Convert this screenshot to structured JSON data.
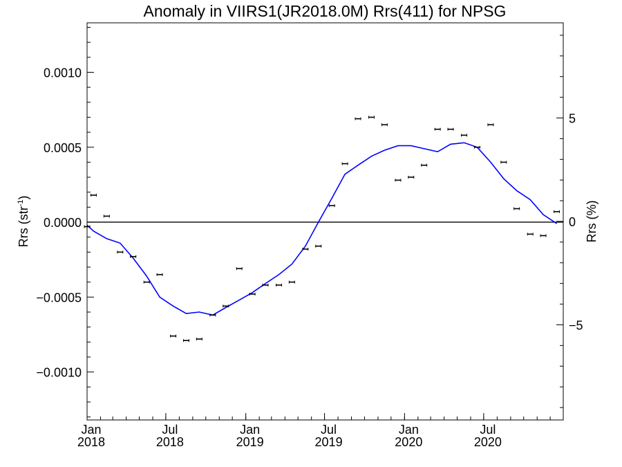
{
  "chart_data": {
    "type": "line",
    "title": "Anomaly in VIIRS1(JR2018.0M) Rrs(411) for NPSG",
    "ylabel_left": {
      "main": "Rrs (str",
      "sup": "-1",
      "end": ")"
    },
    "ylabel_right": "Rrs (%)",
    "xlim": [
      "2018-01-01",
      "2020-12-31"
    ],
    "ylim_left": [
      -0.00132,
      0.00133
    ],
    "ylim_right": [
      -9.6,
      9.6
    ],
    "xticks": [
      {
        "date": "2018-01-01",
        "month": "Jan",
        "year": "2018"
      },
      {
        "date": "2018-07-01",
        "month": "Jul",
        "year": "2018"
      },
      {
        "date": "2019-01-01",
        "month": "Jan",
        "year": "2019"
      },
      {
        "date": "2019-07-01",
        "month": "Jul",
        "year": "2019"
      },
      {
        "date": "2020-01-01",
        "month": "Jan",
        "year": "2020"
      },
      {
        "date": "2020-07-01",
        "month": "Jul",
        "year": "2020"
      }
    ],
    "yticks_left": [
      {
        "value": 0.001,
        "label": "0.0010"
      },
      {
        "value": 0.0005,
        "label": "0.0005"
      },
      {
        "value": 0.0,
        "label": "0.0000"
      },
      {
        "value": -0.0005,
        "label": "−0.0005"
      },
      {
        "value": -0.001,
        "label": "−0.0010"
      }
    ],
    "yticks_right": [
      {
        "value": 5,
        "label": "5"
      },
      {
        "value": 0,
        "label": "0"
      },
      {
        "value": -5,
        "label": "−5"
      }
    ],
    "zero_line": true,
    "colors": {
      "line": "#0000ff",
      "points": "#000000",
      "zero": "#000000"
    },
    "series": [
      {
        "type": "errorbar-points",
        "points": [
          {
            "x": "2018-01-01",
            "y": -3e-05
          },
          {
            "x": "2018-01-16",
            "y": 0.00018
          },
          {
            "x": "2018-02-15",
            "y": 4e-05
          },
          {
            "x": "2018-03-18",
            "y": -0.0002
          },
          {
            "x": "2018-04-17",
            "y": -0.00023
          },
          {
            "x": "2018-05-18",
            "y": -0.0004
          },
          {
            "x": "2018-06-17",
            "y": -0.00035
          },
          {
            "x": "2018-07-18",
            "y": -0.00076
          },
          {
            "x": "2018-08-17",
            "y": -0.00079
          },
          {
            "x": "2018-09-16",
            "y": -0.00078
          },
          {
            "x": "2018-10-17",
            "y": -0.00062
          },
          {
            "x": "2018-11-16",
            "y": -0.00056
          },
          {
            "x": "2018-12-17",
            "y": -0.00031
          },
          {
            "x": "2019-01-16",
            "y": -0.00048
          },
          {
            "x": "2019-02-15",
            "y": -0.00042
          },
          {
            "x": "2019-03-18",
            "y": -0.00042
          },
          {
            "x": "2019-04-17",
            "y": -0.0004
          },
          {
            "x": "2019-05-18",
            "y": -0.00018
          },
          {
            "x": "2019-06-17",
            "y": -0.00016
          },
          {
            "x": "2019-07-18",
            "y": 0.00011
          },
          {
            "x": "2019-08-17",
            "y": 0.00039
          },
          {
            "x": "2019-09-16",
            "y": 0.00069
          },
          {
            "x": "2019-10-17",
            "y": 0.0007
          },
          {
            "x": "2019-11-16",
            "y": 0.00065
          },
          {
            "x": "2019-12-17",
            "y": 0.00028
          },
          {
            "x": "2020-01-16",
            "y": 0.0003
          },
          {
            "x": "2020-02-15",
            "y": 0.00038
          },
          {
            "x": "2020-03-17",
            "y": 0.00062
          },
          {
            "x": "2020-04-16",
            "y": 0.00062
          },
          {
            "x": "2020-05-17",
            "y": 0.00058
          },
          {
            "x": "2020-06-16",
            "y": 0.0005
          },
          {
            "x": "2020-07-17",
            "y": 0.00065
          },
          {
            "x": "2020-08-16",
            "y": 0.0004
          },
          {
            "x": "2020-09-15",
            "y": 9e-05
          },
          {
            "x": "2020-10-16",
            "y": -8e-05
          },
          {
            "x": "2020-11-15",
            "y": -9e-05
          },
          {
            "x": "2020-12-16",
            "y": 7e-05
          }
        ]
      },
      {
        "type": "line",
        "points": [
          {
            "x": "2018-01-01",
            "y": -2e-05
          },
          {
            "x": "2018-01-16",
            "y": -6e-05
          },
          {
            "x": "2018-02-15",
            "y": -0.00011
          },
          {
            "x": "2018-03-18",
            "y": -0.00014
          },
          {
            "x": "2018-04-17",
            "y": -0.00024
          },
          {
            "x": "2018-05-18",
            "y": -0.00036
          },
          {
            "x": "2018-06-17",
            "y": -0.0005
          },
          {
            "x": "2018-07-18",
            "y": -0.00056
          },
          {
            "x": "2018-08-17",
            "y": -0.00061
          },
          {
            "x": "2018-09-16",
            "y": -0.0006
          },
          {
            "x": "2018-10-17",
            "y": -0.00062
          },
          {
            "x": "2018-11-16",
            "y": -0.00057
          },
          {
            "x": "2018-12-17",
            "y": -0.00052
          },
          {
            "x": "2019-01-16",
            "y": -0.00047
          },
          {
            "x": "2019-02-15",
            "y": -0.00041
          },
          {
            "x": "2019-03-18",
            "y": -0.00035
          },
          {
            "x": "2019-04-17",
            "y": -0.00028
          },
          {
            "x": "2019-05-18",
            "y": -0.00016
          },
          {
            "x": "2019-06-17",
            "y": 0.0
          },
          {
            "x": "2019-07-18",
            "y": 0.00016
          },
          {
            "x": "2019-08-17",
            "y": 0.00032
          },
          {
            "x": "2019-09-16",
            "y": 0.00038
          },
          {
            "x": "2019-10-17",
            "y": 0.00044
          },
          {
            "x": "2019-11-16",
            "y": 0.00048
          },
          {
            "x": "2019-12-17",
            "y": 0.00051
          },
          {
            "x": "2020-01-16",
            "y": 0.00051
          },
          {
            "x": "2020-02-15",
            "y": 0.00049
          },
          {
            "x": "2020-03-17",
            "y": 0.00047
          },
          {
            "x": "2020-04-16",
            "y": 0.00052
          },
          {
            "x": "2020-05-17",
            "y": 0.00053
          },
          {
            "x": "2020-06-16",
            "y": 0.0005
          },
          {
            "x": "2020-07-17",
            "y": 0.0004
          },
          {
            "x": "2020-08-16",
            "y": 0.00029
          },
          {
            "x": "2020-09-15",
            "y": 0.00021
          },
          {
            "x": "2020-10-16",
            "y": 0.00015
          },
          {
            "x": "2020-11-15",
            "y": 5e-05
          },
          {
            "x": "2020-12-16",
            "y": -1e-05
          }
        ]
      }
    ]
  }
}
